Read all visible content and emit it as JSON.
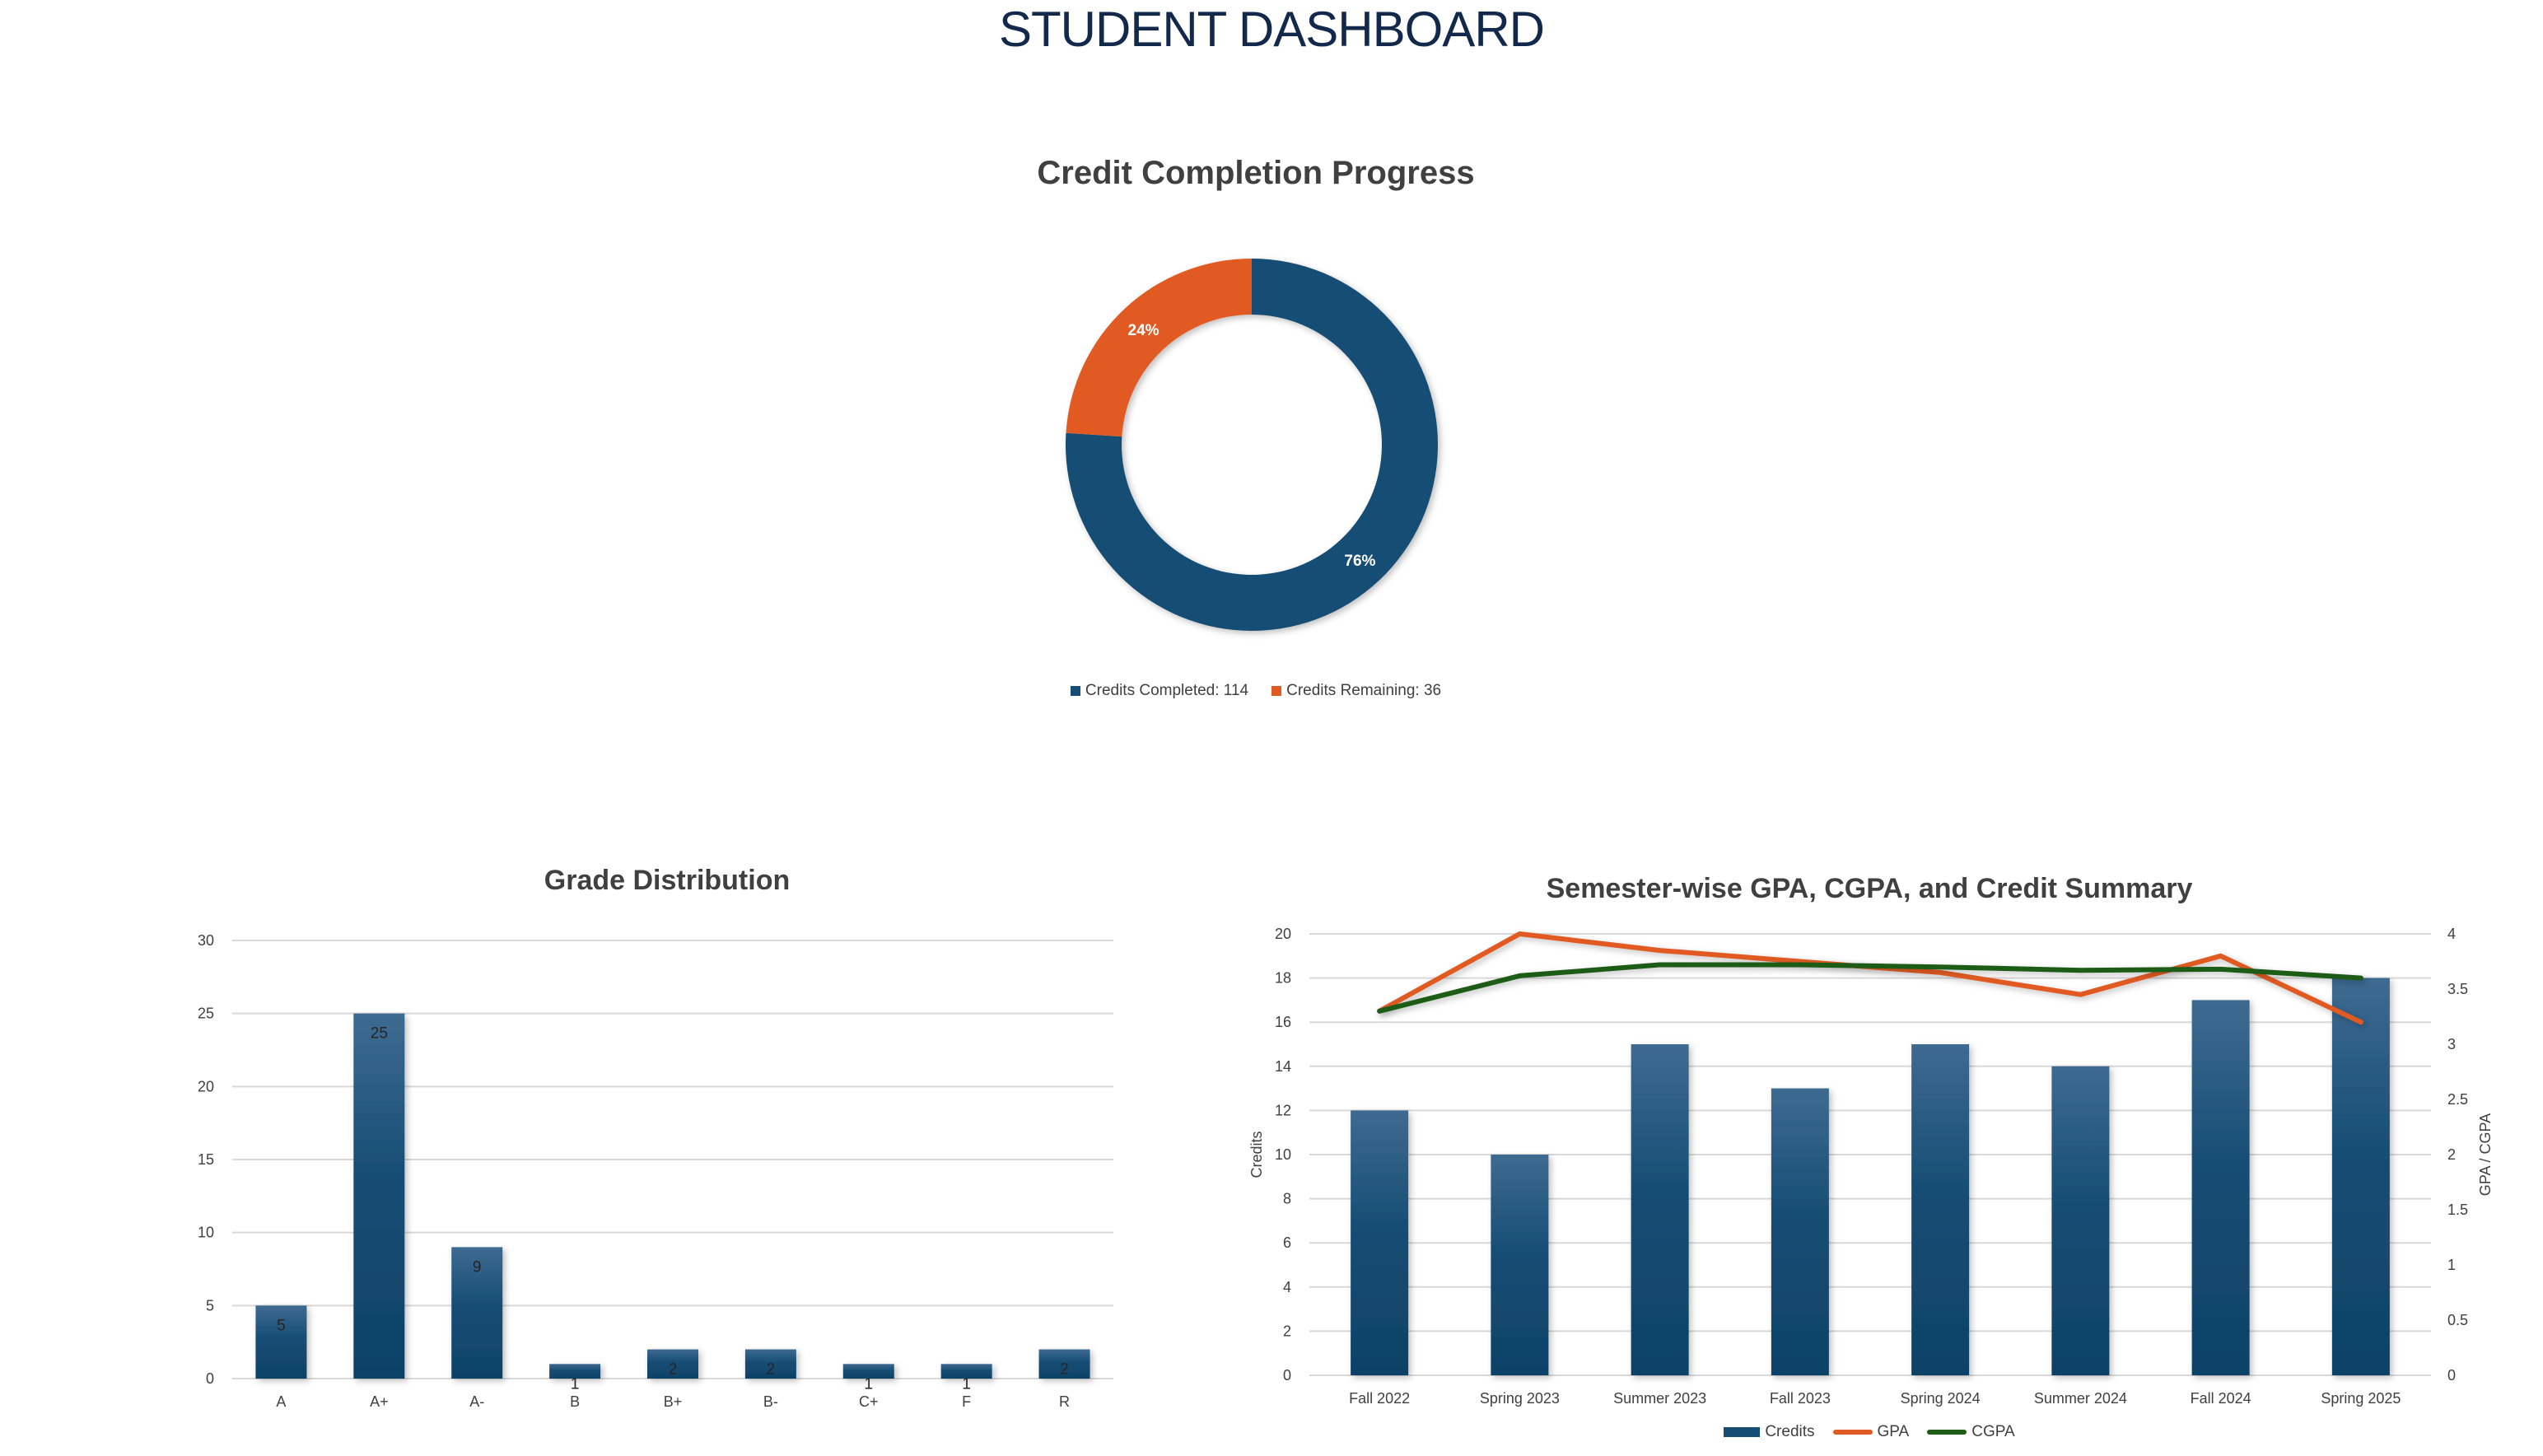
{
  "page": {
    "title": "STUDENT DASHBOARD"
  },
  "colors": {
    "navy": "#13294b",
    "blue": "#164d74",
    "orange": "#e05a24",
    "green": "#1e5c17"
  },
  "chart_data": [
    {
      "id": "credit-completion",
      "type": "pie",
      "variant": "donut",
      "title": "Credit Completion Progress",
      "categories": [
        "Credits Completed: 114",
        "Credits Remaining: 36"
      ],
      "values": [
        114,
        36
      ],
      "percent_labels": [
        "76%",
        "24%"
      ],
      "colors": [
        "#164d74",
        "#e05a24"
      ],
      "legend": "bottom"
    },
    {
      "id": "grade-distribution",
      "type": "bar",
      "title": "Grade Distribution",
      "categories": [
        "A",
        "A+",
        "A-",
        "B",
        "B+",
        "B-",
        "C+",
        "F",
        "R"
      ],
      "values": [
        5,
        25,
        9,
        1,
        2,
        2,
        1,
        1,
        2
      ],
      "data_labels": [
        "5",
        "25",
        "9",
        "1",
        "2",
        "2",
        "1",
        "1",
        "2"
      ],
      "ylim": [
        0,
        30
      ],
      "yticks": [
        "0",
        "5",
        "10",
        "15",
        "20",
        "25",
        "30"
      ],
      "grid": true,
      "color": "#164d74"
    },
    {
      "id": "semester-summary",
      "type": "bar",
      "combo": "bar+line (secondary axis)",
      "title": "Semester-wise GPA, CGPA, and Credit Summary",
      "categories": [
        "Fall 2022",
        "Spring 2023",
        "Summer 2023",
        "Fall 2023",
        "Spring 2024",
        "Summer 2024",
        "Fall 2024",
        "Spring 2025"
      ],
      "series": [
        {
          "name": "Credits",
          "type": "bar",
          "axis": "left",
          "values": [
            12,
            10,
            15,
            13,
            15,
            14,
            17,
            18
          ],
          "color": "#164d74"
        },
        {
          "name": "GPA",
          "type": "line",
          "axis": "right",
          "values": [
            3.3,
            4.0,
            3.85,
            3.75,
            3.65,
            3.45,
            3.8,
            3.2
          ],
          "color": "#e05a24"
        },
        {
          "name": "CGPA",
          "type": "line",
          "axis": "right",
          "values": [
            3.3,
            3.62,
            3.72,
            3.72,
            3.7,
            3.67,
            3.68,
            3.6
          ],
          "color": "#1e5c17"
        }
      ],
      "ylabel": "Credits",
      "ylim": [
        0,
        20
      ],
      "yticks": [
        "0",
        "2",
        "4",
        "6",
        "8",
        "10",
        "12",
        "14",
        "16",
        "18",
        "20"
      ],
      "y2label": "GPA / CGPA",
      "y2lim": [
        0,
        4
      ],
      "y2ticks": [
        "0",
        "0.5",
        "1",
        "1.5",
        "2",
        "2.5",
        "3",
        "3.5",
        "4"
      ],
      "grid": true,
      "legend": "bottom"
    }
  ]
}
